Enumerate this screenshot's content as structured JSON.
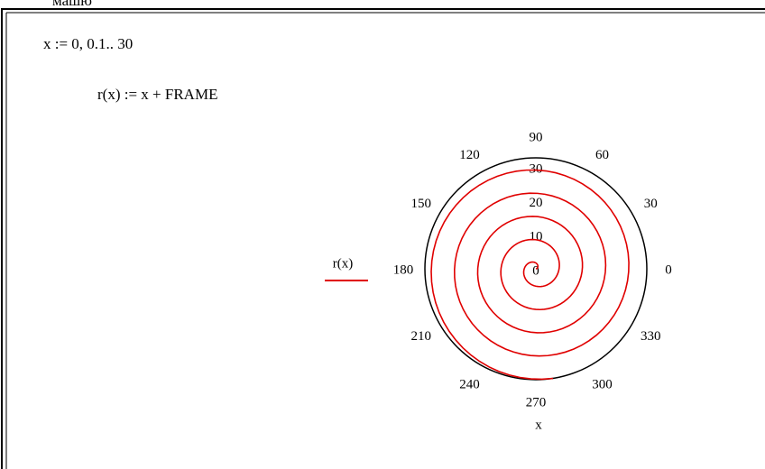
{
  "header_fragment": "машю",
  "worksheet": {
    "lines": [
      "x := 0, 0.1.. 30",
      "r(x) := x + FRAME"
    ],
    "plot": {
      "type": "polar",
      "x": {
        "start": 0,
        "step": 0.1,
        "end": 30
      },
      "rlim": [
        0,
        30
      ],
      "rticks": [
        0,
        10,
        20,
        30
      ],
      "angle_ticks": [
        0,
        30,
        60,
        90,
        120,
        150,
        180,
        210,
        240,
        270,
        300,
        330
      ],
      "series": [
        {
          "name": "r(x)",
          "color": "#e00000"
        }
      ],
      "xlabel": "x"
    }
  }
}
